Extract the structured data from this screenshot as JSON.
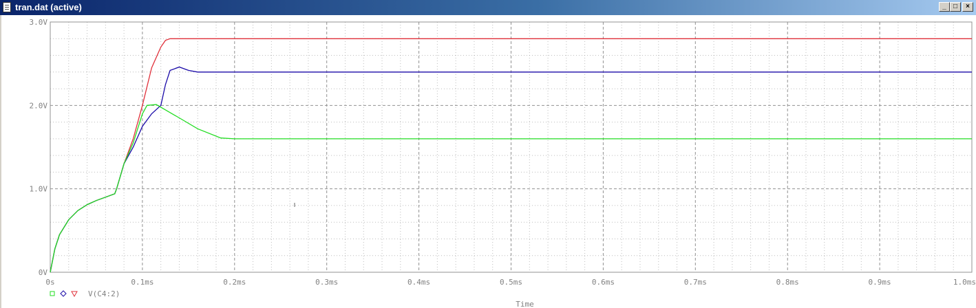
{
  "window": {
    "title": "tran.dat (active)",
    "buttons": {
      "minimize": "_",
      "maximize": "□",
      "close": "×"
    }
  },
  "colors": {
    "grid": "#909090",
    "axis_text": "#808080",
    "red": "#e0303a",
    "blue": "#1a0aa8",
    "green": "#22dd22"
  },
  "chart_data": {
    "type": "line",
    "xlabel": "Time",
    "ylabel": "",
    "xlim": [
      0,
      1.0
    ],
    "ylim": [
      0,
      3.0
    ],
    "x_unit": "ms",
    "x_ticks": [
      "0s",
      "0.1ms",
      "0.2ms",
      "0.3ms",
      "0.4ms",
      "0.5ms",
      "0.6ms",
      "0.7ms",
      "0.8ms",
      "0.9ms",
      "1.0ms"
    ],
    "y_ticks": [
      "0V",
      "1.0V",
      "2.0V",
      "3.0V"
    ],
    "grid": true,
    "legend_placement": "bottom-left",
    "legend": {
      "markers": [
        "square",
        "diamond",
        "triangle"
      ],
      "label": "V(C4:2)"
    },
    "series": [
      {
        "color": "red",
        "marker": "triangle",
        "points": [
          [
            0,
            0
          ],
          [
            0.005,
            0.28
          ],
          [
            0.01,
            0.45
          ],
          [
            0.02,
            0.63
          ],
          [
            0.03,
            0.74
          ],
          [
            0.04,
            0.81
          ],
          [
            0.05,
            0.86
          ],
          [
            0.06,
            0.9
          ],
          [
            0.07,
            0.94
          ],
          [
            0.072,
            1.0
          ],
          [
            0.08,
            1.3
          ],
          [
            0.09,
            1.6
          ],
          [
            0.1,
            2.0
          ],
          [
            0.11,
            2.45
          ],
          [
            0.12,
            2.7
          ],
          [
            0.125,
            2.78
          ],
          [
            0.13,
            2.8
          ],
          [
            1.0,
            2.8
          ]
        ]
      },
      {
        "color": "blue",
        "marker": "diamond",
        "points": [
          [
            0,
            0
          ],
          [
            0.005,
            0.28
          ],
          [
            0.01,
            0.45
          ],
          [
            0.02,
            0.63
          ],
          [
            0.03,
            0.74
          ],
          [
            0.04,
            0.81
          ],
          [
            0.05,
            0.86
          ],
          [
            0.06,
            0.9
          ],
          [
            0.07,
            0.94
          ],
          [
            0.072,
            1.0
          ],
          [
            0.08,
            1.3
          ],
          [
            0.09,
            1.5
          ],
          [
            0.1,
            1.75
          ],
          [
            0.11,
            1.9
          ],
          [
            0.12,
            2.0
          ],
          [
            0.125,
            2.25
          ],
          [
            0.13,
            2.42
          ],
          [
            0.14,
            2.46
          ],
          [
            0.15,
            2.42
          ],
          [
            0.16,
            2.4
          ],
          [
            1.0,
            2.4
          ]
        ]
      },
      {
        "color": "green",
        "marker": "square",
        "points": [
          [
            0,
            0
          ],
          [
            0.005,
            0.28
          ],
          [
            0.01,
            0.45
          ],
          [
            0.02,
            0.63
          ],
          [
            0.03,
            0.74
          ],
          [
            0.04,
            0.81
          ],
          [
            0.05,
            0.86
          ],
          [
            0.06,
            0.9
          ],
          [
            0.07,
            0.94
          ],
          [
            0.072,
            1.0
          ],
          [
            0.08,
            1.3
          ],
          [
            0.09,
            1.55
          ],
          [
            0.1,
            1.9
          ],
          [
            0.105,
            2.0
          ],
          [
            0.115,
            2.01
          ],
          [
            0.14,
            1.85
          ],
          [
            0.16,
            1.72
          ],
          [
            0.185,
            1.61
          ],
          [
            0.2,
            1.6
          ],
          [
            1.0,
            1.6
          ]
        ]
      }
    ]
  }
}
